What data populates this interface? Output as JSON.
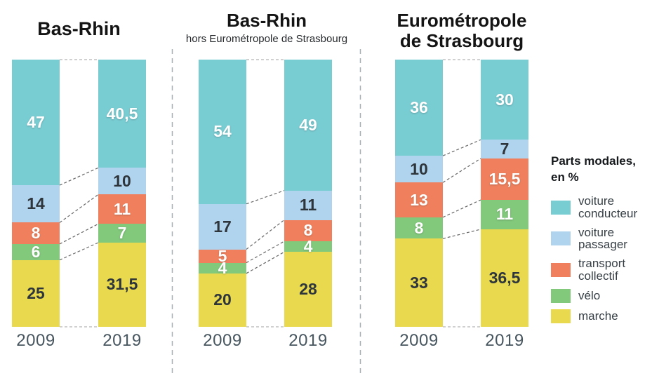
{
  "legend": {
    "title_line1": "Parts modales,",
    "title_line2": "en %",
    "items": [
      {
        "key": "voiture-conducteur",
        "label": "voiture conducteur",
        "color": "#78cdd3"
      },
      {
        "key": "voiture-passager",
        "label": "voiture passager",
        "color": "#b0d3ee"
      },
      {
        "key": "transport-collectif",
        "label": "transport collectif",
        "color": "#f0805d"
      },
      {
        "key": "velo",
        "label": "vélo",
        "color": "#82c97c"
      },
      {
        "key": "marche",
        "label": "marche",
        "color": "#e8d94f"
      }
    ]
  },
  "chart_data": {
    "type": "bar",
    "variant": "100-percent-stacked-columns",
    "unit": "%",
    "ylim": [
      0,
      100
    ],
    "legend_position": "right",
    "legend_title": "Parts modales, en %",
    "series_order_top_to_bottom": [
      "voiture conducteur",
      "voiture passager",
      "transport collectif",
      "vélo",
      "marche"
    ],
    "series_colors": {
      "voiture conducteur": "#78cdd3",
      "voiture passager": "#b0d3ee",
      "transport collectif": "#f0805d",
      "vélo": "#82c97c",
      "marche": "#e8d94f"
    },
    "label_text_colors": {
      "voiture conducteur": "#ffffff",
      "voiture passager": "#2e363c",
      "transport collectif": "#ffffff",
      "vélo": "#ffffff",
      "marche": "#2e363c"
    },
    "categories": [
      "2009",
      "2019"
    ],
    "groups": [
      {
        "title": "Bas-Rhin",
        "subtitle": "",
        "bars": [
          {
            "year": "2009",
            "values": [
              47,
              14,
              8,
              6,
              25
            ],
            "labels": [
              "47",
              "14",
              "8",
              "6",
              "25"
            ]
          },
          {
            "year": "2019",
            "values": [
              40.5,
              10,
              11,
              7,
              31.5
            ],
            "labels": [
              "40,5",
              "10",
              "11",
              "7",
              "31,5"
            ]
          }
        ]
      },
      {
        "title": "Bas-Rhin",
        "subtitle": "hors Eurométropole de Strasbourg",
        "bars": [
          {
            "year": "2009",
            "values": [
              54,
              17,
              5,
              4,
              20
            ],
            "labels": [
              "54",
              "17",
              "5",
              "4",
              "20"
            ]
          },
          {
            "year": "2019",
            "values": [
              49,
              11,
              8,
              4,
              28
            ],
            "labels": [
              "49",
              "11",
              "8",
              "4",
              "28"
            ]
          }
        ]
      },
      {
        "title": "Eurométropole de Strasbourg",
        "subtitle": "",
        "bars": [
          {
            "year": "2009",
            "values": [
              36,
              10,
              13,
              8,
              33
            ],
            "labels": [
              "36",
              "10",
              "13",
              "8",
              "33"
            ]
          },
          {
            "year": "2019",
            "values": [
              30,
              7,
              15.5,
              11,
              36.5
            ],
            "labels": [
              "30",
              "7",
              "15,5",
              "11",
              "36,5"
            ]
          }
        ]
      }
    ]
  }
}
